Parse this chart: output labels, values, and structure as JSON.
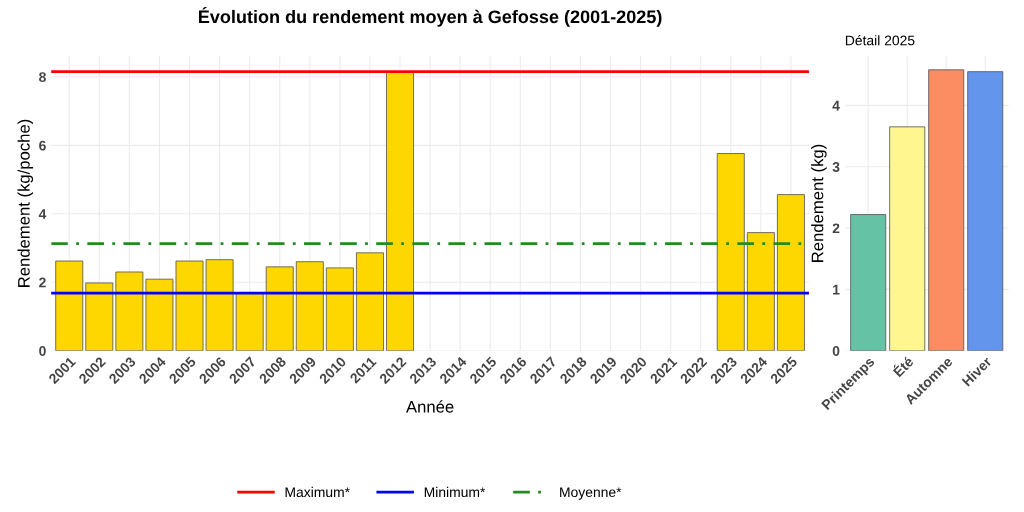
{
  "chart_data": [
    {
      "type": "bar",
      "title": "Évolution du rendement moyen à Gefosse (2001-2025)",
      "xlabel": "Année",
      "ylabel": "Rendement (kg/poche)",
      "categories": [
        "2001",
        "2002",
        "2003",
        "2004",
        "2005",
        "2006",
        "2007",
        "2008",
        "2009",
        "2010",
        "2011",
        "2012",
        "2013",
        "2014",
        "2015",
        "2016",
        "2017",
        "2018",
        "2019",
        "2020",
        "2021",
        "2022",
        "2023",
        "2024",
        "2025"
      ],
      "values": [
        2.62,
        1.98,
        2.3,
        2.09,
        2.62,
        2.66,
        1.68,
        2.45,
        2.6,
        2.42,
        2.86,
        8.15,
        null,
        null,
        null,
        null,
        null,
        null,
        null,
        null,
        null,
        null,
        5.76,
        3.45,
        4.56
      ],
      "color": "#ffd700",
      "ylim": [
        0,
        8.6
      ],
      "yticks": [
        0,
        2,
        4,
        6,
        8
      ],
      "grid": true,
      "legend": "bottom",
      "ref_lines": [
        {
          "axis": "y",
          "value": 8.15,
          "label": "Maximum*",
          "color": "#ff0000",
          "line_style": "solid"
        },
        {
          "axis": "y",
          "value": 1.68,
          "label": "Minimum*",
          "color": "#0000ff",
          "line_style": "solid"
        },
        {
          "axis": "y",
          "value": 3.13,
          "label": "Moyenne*",
          "color": "#228b22",
          "line_style": "dashdot"
        }
      ]
    },
    {
      "type": "bar",
      "title": "Détail 2025",
      "ylabel": "Rendement (kg)",
      "categories": [
        "Printemps",
        "Été",
        "Automne",
        "Hiver"
      ],
      "values": [
        2.22,
        3.65,
        4.58,
        4.55
      ],
      "colors": [
        "#66c2a5",
        "#fff68f",
        "#fc8d62",
        "#6495ed"
      ],
      "ylim": [
        0,
        4.8
      ],
      "yticks": [
        0,
        1,
        2,
        3,
        4
      ],
      "grid": true
    }
  ]
}
